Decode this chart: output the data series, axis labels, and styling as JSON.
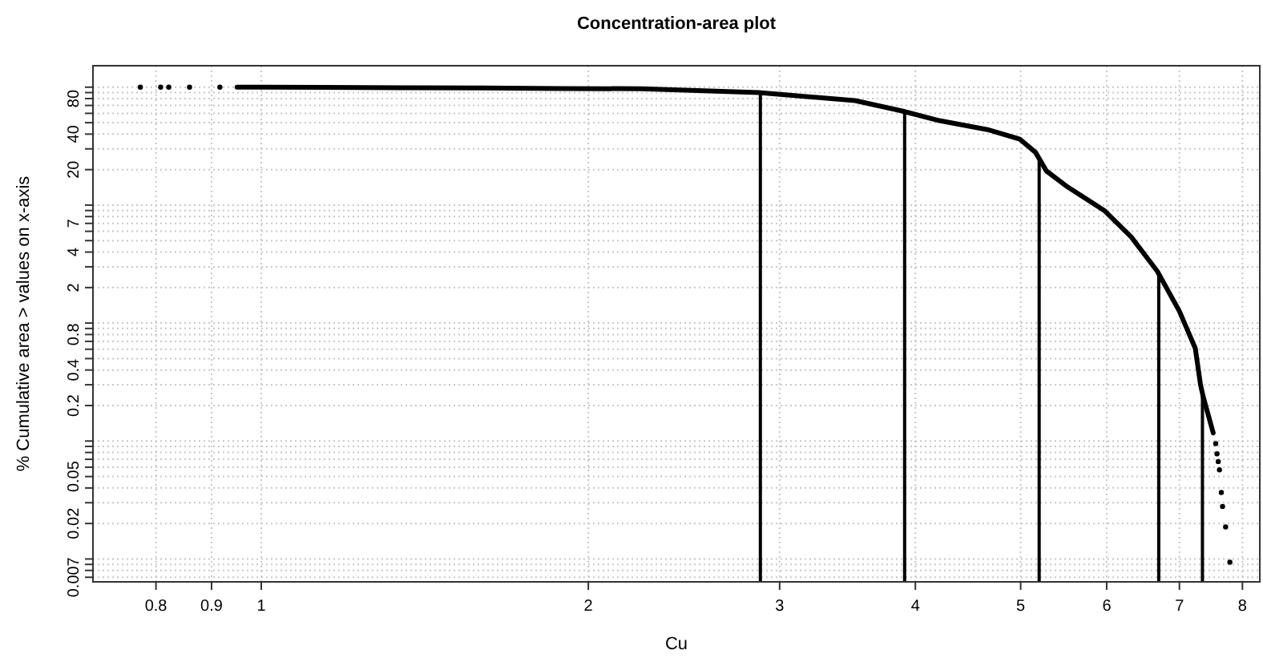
{
  "chart_data": {
    "type": "scatter",
    "title": "Concentration-area plot",
    "xlabel": "Cu",
    "ylabel": "% Cumulative area > values on x-axis",
    "log": "xy",
    "grid": true,
    "marker": "circle",
    "xlim": [
      0.7,
      8.3
    ],
    "xticks": [
      0.8,
      0.9,
      1,
      2,
      3,
      4,
      5,
      6,
      7,
      8
    ],
    "ylim": [
      0.0064,
      152
    ],
    "yticks": [
      0.007,
      {
        "value": 0.008,
        "label": null
      },
      {
        "value": 0.009,
        "label": null
      },
      {
        "value": 0.01,
        "label": null
      },
      0.02,
      {
        "value": 0.03,
        "label": null
      },
      {
        "value": 0.04,
        "label": null
      },
      0.05,
      {
        "value": 0.06,
        "label": null
      },
      {
        "value": 0.07,
        "label": null
      },
      {
        "value": 0.08,
        "label": null
      },
      {
        "value": 0.09,
        "label": null
      },
      {
        "value": 0.1,
        "label": null
      },
      0.2,
      {
        "value": 0.3,
        "label": null
      },
      0.4,
      {
        "value": 0.5,
        "label": null
      },
      {
        "value": 0.6,
        "label": null
      },
      {
        "value": 0.7,
        "label": null
      },
      0.8,
      {
        "value": 0.9,
        "label": null
      },
      {
        "value": 1,
        "label": null
      },
      2,
      {
        "value": 3,
        "label": null
      },
      4,
      {
        "value": 5,
        "label": null
      },
      {
        "value": 6,
        "label": null
      },
      7,
      {
        "value": 8,
        "label": null
      },
      {
        "value": 9,
        "label": null
      },
      {
        "value": 10,
        "label": null
      },
      20,
      {
        "value": 30,
        "label": null
      },
      40,
      {
        "value": 50,
        "label": null
      },
      {
        "value": 60,
        "label": null
      },
      {
        "value": 70,
        "label": null
      },
      80,
      {
        "value": 90,
        "label": null
      },
      {
        "value": 100,
        "label": null
      }
    ],
    "series": [
      {
        "color": "#000000",
        "x": [
          0.774,
          0.808,
          0.822,
          0.859,
          0.916
        ],
        "values": [
          100,
          100,
          100,
          100,
          100
        ]
      },
      {
        "type": "line",
        "marker": "none",
        "color": "#000000",
        "x": [
          0.95,
          1.0,
          1.14,
          1.35,
          1.6,
          1.89,
          2.24,
          2.87,
          3.52,
          3.89,
          4.21,
          4.66,
          4.99,
          5.16,
          5.28,
          5.52,
          5.97,
          6.32,
          6.68,
          7.0,
          7.24,
          7.32,
          7.36,
          7.52
        ],
        "values": [
          100,
          99.9,
          99.5,
          99,
          98.5,
          97.5,
          96.9,
          90,
          77,
          62.8,
          52,
          43.7,
          36.3,
          28,
          19.5,
          14.3,
          9,
          5.37,
          2.75,
          1.26,
          0.61,
          0.3,
          0.24,
          0.117
        ]
      },
      {
        "color": "#000000",
        "x": [
          7.56,
          7.58,
          7.6,
          7.62,
          7.65,
          7.67,
          7.72,
          7.79
        ],
        "values": [
          0.095,
          0.078,
          0.067,
          0.057,
          0.0366,
          0.0279,
          0.0187,
          0.0094
        ]
      }
    ],
    "ref_lines": [
      {
        "axis": "x",
        "value": 2.88,
        "color": "#000000"
      },
      {
        "axis": "x",
        "value": 3.91,
        "color": "#000000"
      },
      {
        "axis": "x",
        "value": 5.2,
        "color": "#000000"
      },
      {
        "axis": "x",
        "value": 6.7,
        "color": "#000000"
      },
      {
        "axis": "x",
        "value": 7.35,
        "color": "#000000"
      }
    ]
  }
}
